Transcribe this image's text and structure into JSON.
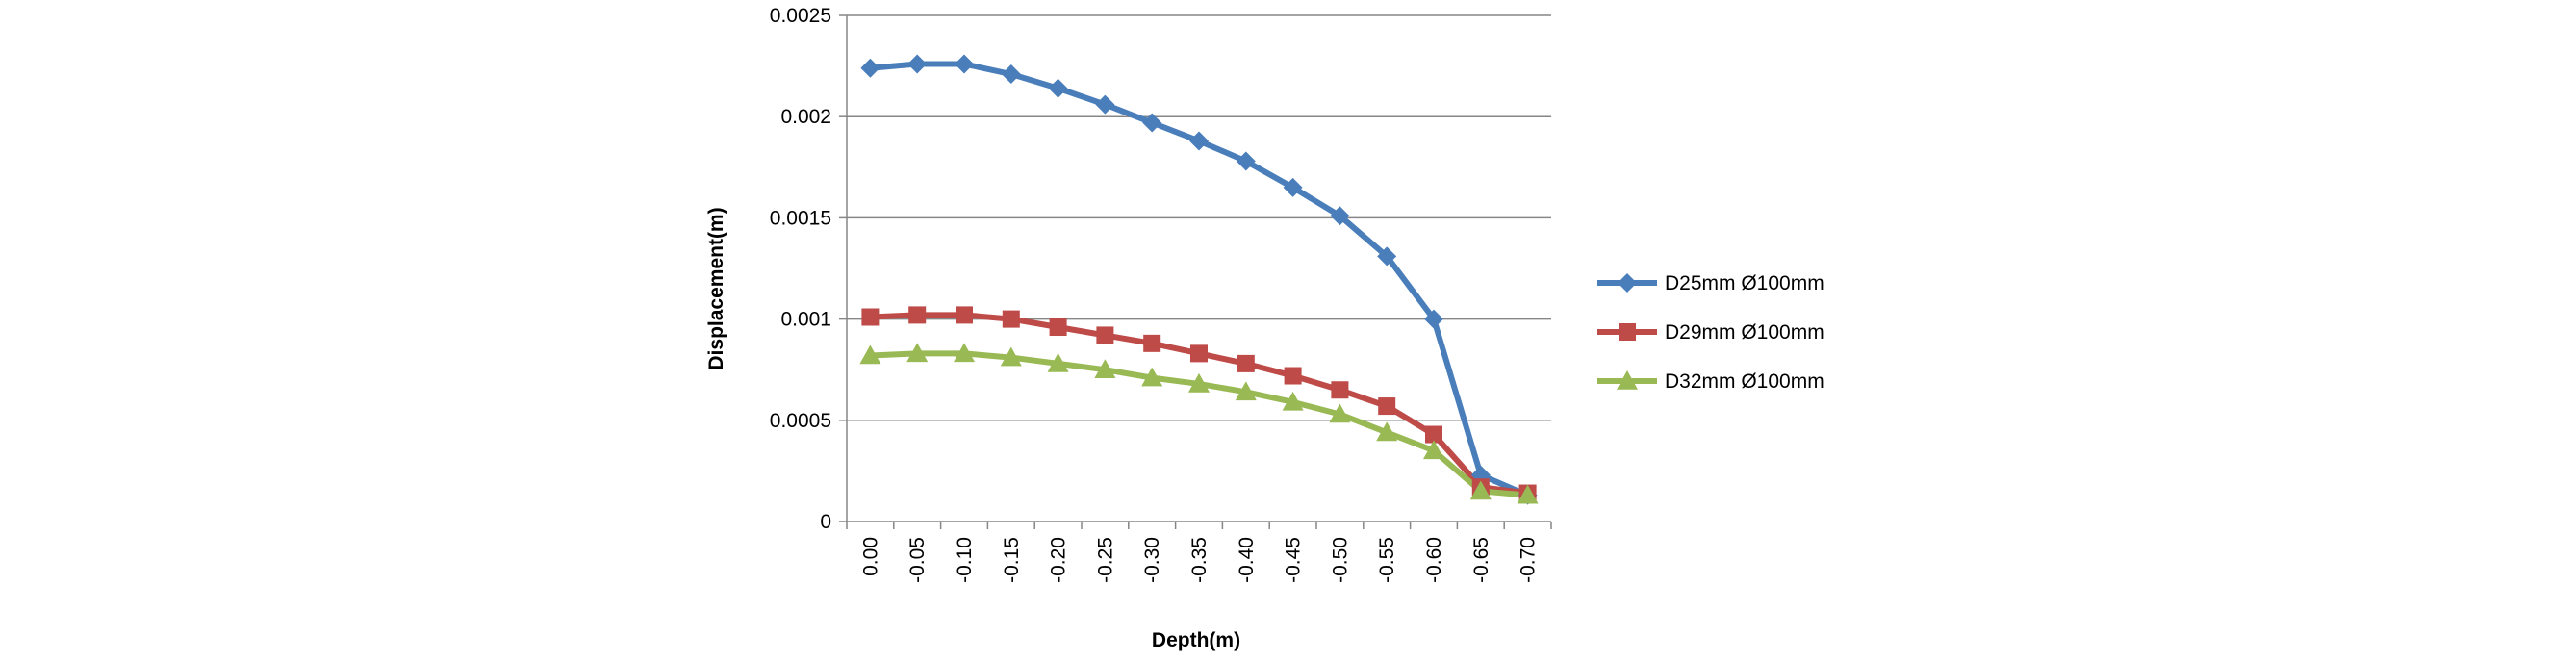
{
  "chart_data": {
    "type": "line",
    "title": "",
    "xlabel": "Depth(m)",
    "ylabel": "Displacement(m)",
    "categories": [
      "0.00",
      "-0.05",
      "-0.10",
      "-0.15",
      "-0.20",
      "-0.25",
      "-0.30",
      "-0.35",
      "-0.40",
      "-0.45",
      "-0.50",
      "-0.55",
      "-0.60",
      "-0.65",
      "-0.70"
    ],
    "ylim": [
      0,
      0.0025
    ],
    "yticks": [
      "0",
      "0.0005",
      "0.001",
      "0.0015",
      "0.002",
      "0.0025"
    ],
    "ytick_values": [
      0,
      0.0005,
      0.001,
      0.0015,
      0.002,
      0.0025
    ],
    "grid": true,
    "legend_position": "right",
    "series": [
      {
        "name": "D25mm Ø100mm",
        "color": "#4a7ebb",
        "marker": "diamond",
        "values": [
          0.00224,
          0.00226,
          0.00226,
          0.00221,
          0.00214,
          0.00206,
          0.00197,
          0.00188,
          0.00178,
          0.00165,
          0.00151,
          0.00131,
          0.001,
          0.00023,
          0.00013
        ]
      },
      {
        "name": "D29mm Ø100mm",
        "color": "#be4b48",
        "marker": "square",
        "values": [
          0.00101,
          0.00102,
          0.00102,
          0.001,
          0.00096,
          0.00092,
          0.00088,
          0.00083,
          0.00078,
          0.00072,
          0.00065,
          0.00057,
          0.00043,
          0.00017,
          0.00014
        ]
      },
      {
        "name": "D32mm Ø100mm",
        "color": "#98b954",
        "marker": "triangle",
        "values": [
          0.00082,
          0.00083,
          0.00083,
          0.00081,
          0.00078,
          0.00075,
          0.00071,
          0.00068,
          0.00064,
          0.00059,
          0.00053,
          0.00044,
          0.00035,
          0.00015,
          0.00013
        ]
      }
    ]
  }
}
